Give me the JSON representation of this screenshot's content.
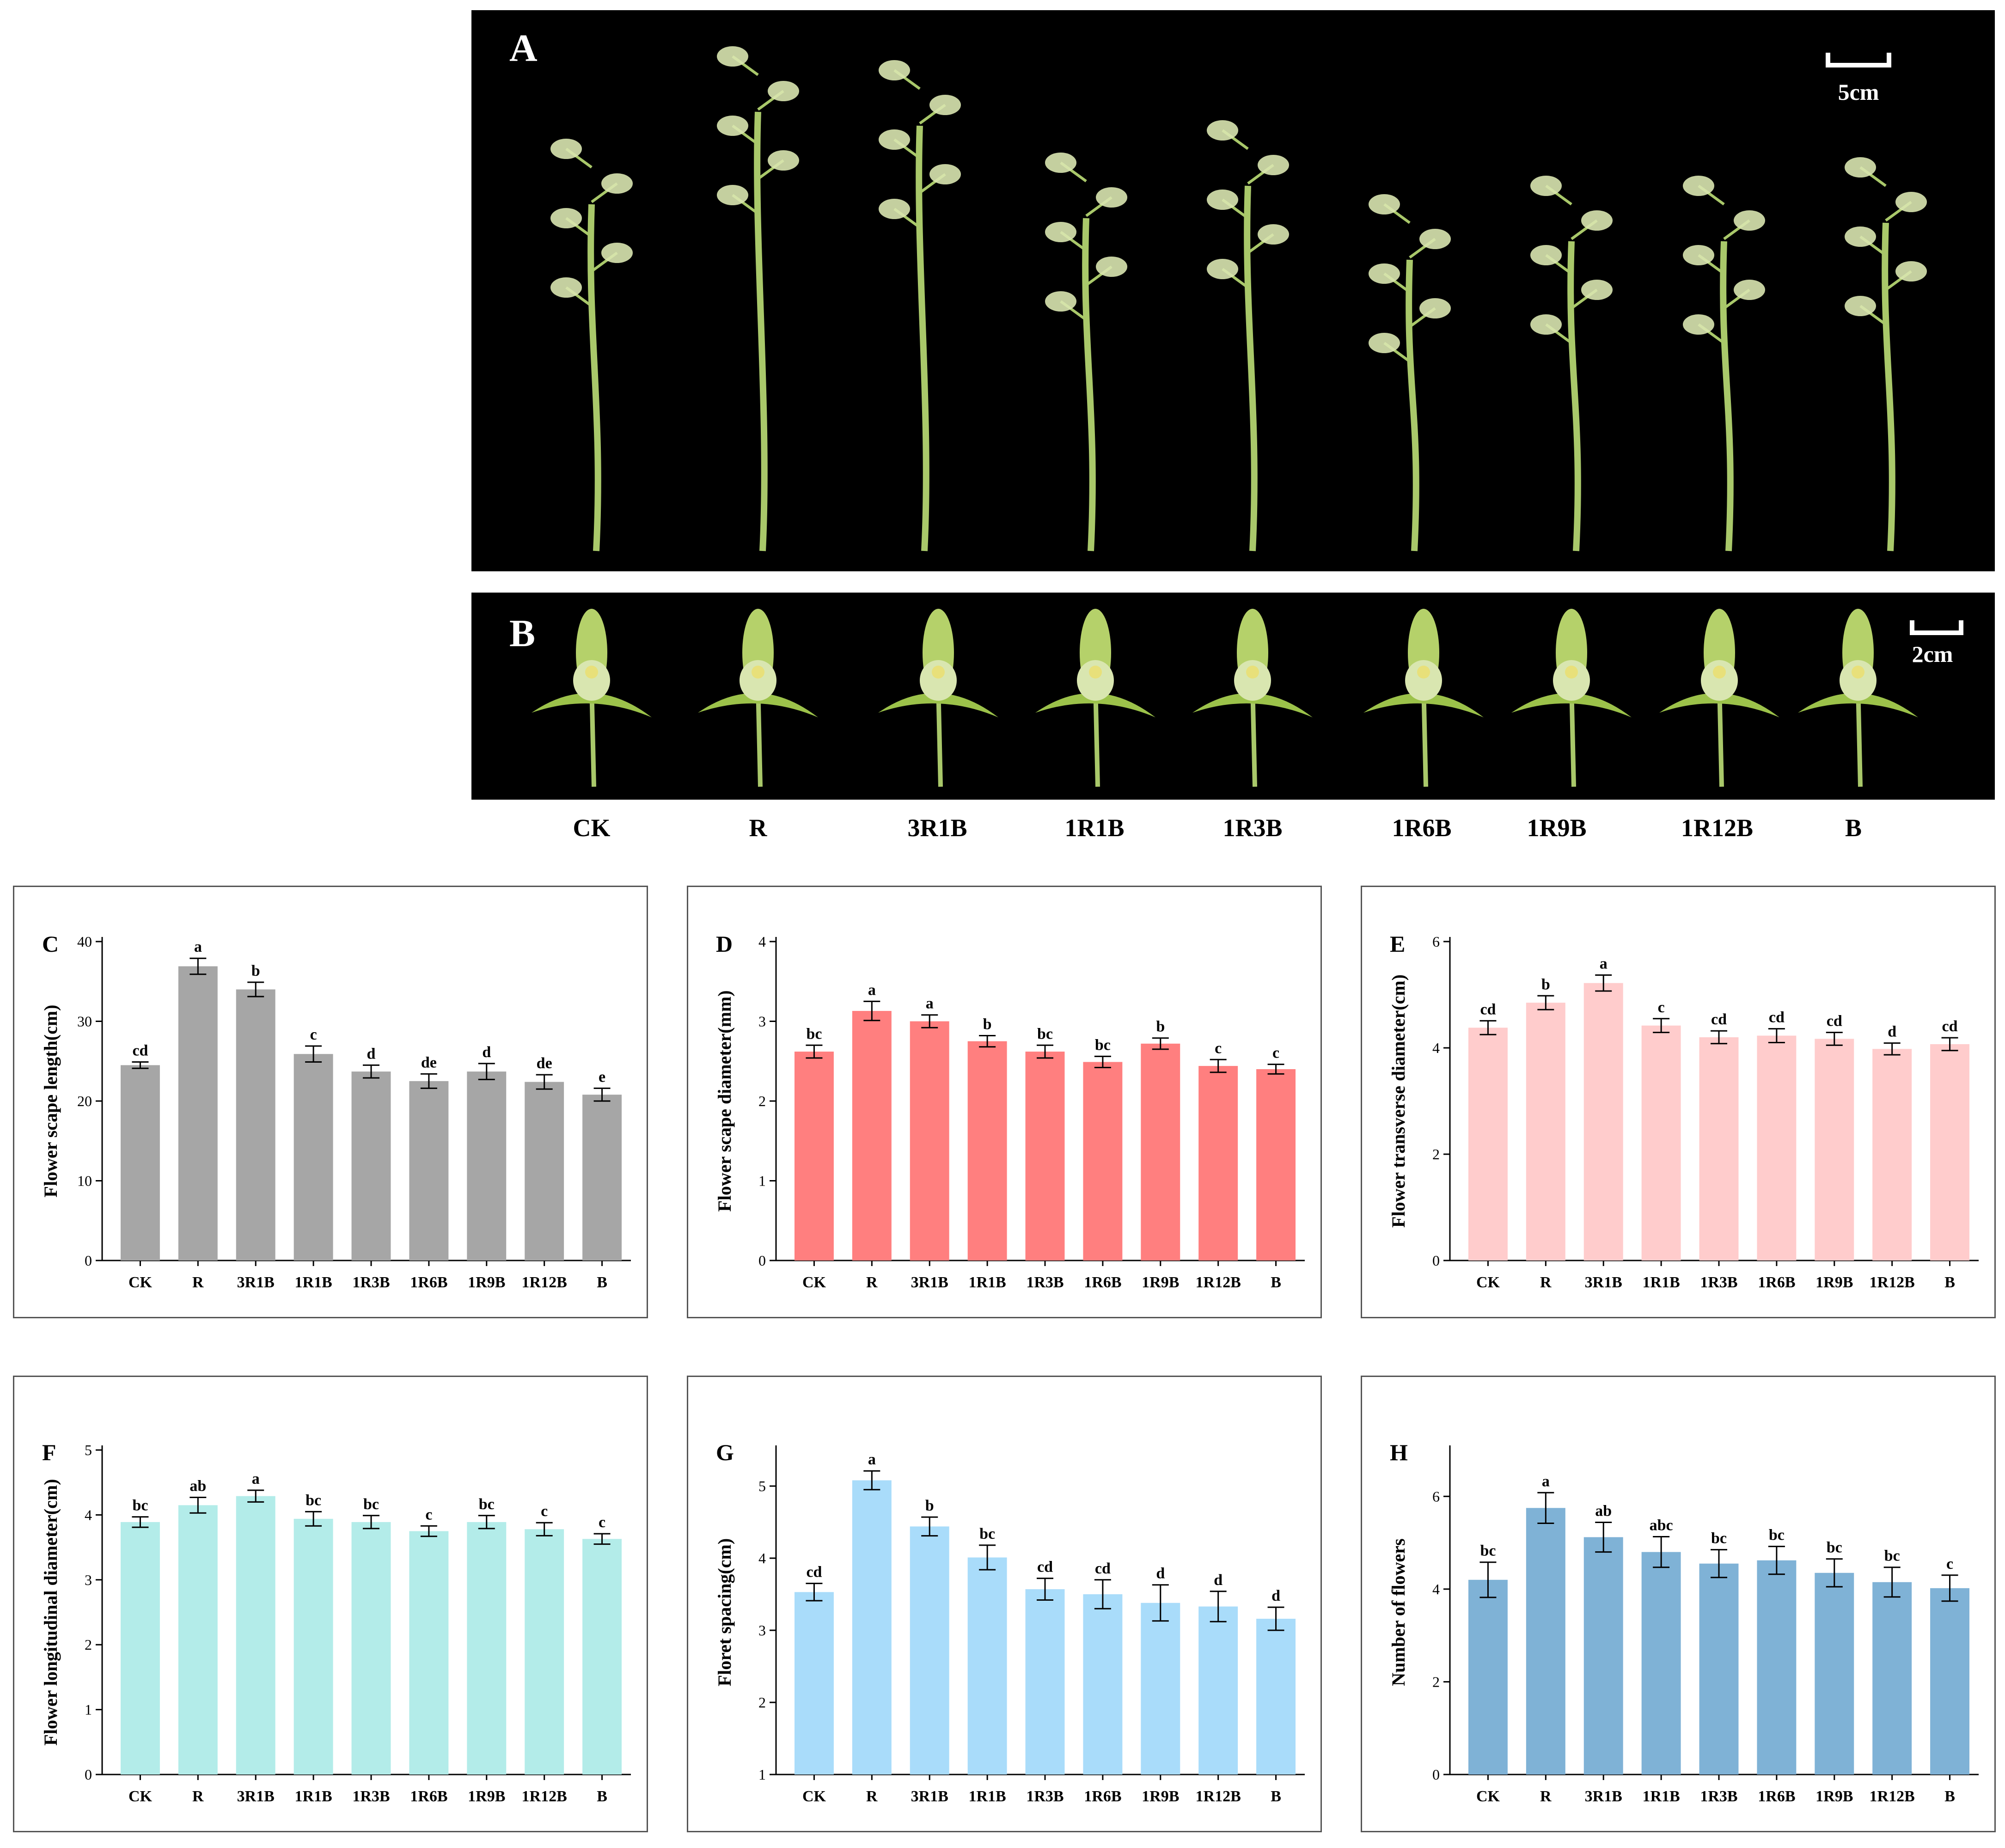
{
  "panels": {
    "A": {
      "letter": "A",
      "scale_label": "5cm"
    },
    "B": {
      "letter": "B",
      "scale_label": "2cm"
    }
  },
  "treatments": [
    "CK",
    "R",
    "3R1B",
    "1R1B",
    "1R3B",
    "1R6B",
    "1R9B",
    "1R12B",
    "B"
  ],
  "colors": {
    "C": "#a6a6a6",
    "D": "#ff7f7f",
    "E": "#ffcccc",
    "F": "#b3ece9",
    "G": "#a9dcfa",
    "H": "#7fb2d6",
    "plant_stem": "#a9c86a",
    "flower": "#d9e6b0"
  },
  "chart_data": [
    {
      "id": "C",
      "type": "bar",
      "letter": "C",
      "ylabel": "Flower scape length(cm)",
      "ylim": [
        0,
        40
      ],
      "yticks": [
        "0",
        "10",
        "20",
        "30",
        "40"
      ],
      "categories": [
        "CK",
        "R",
        "3R1B",
        "1R1B",
        "1R3B",
        "1R6B",
        "1R9B",
        "1R12B",
        "B"
      ],
      "values": [
        24.5,
        36.9,
        34.0,
        25.9,
        23.7,
        22.5,
        23.7,
        22.4,
        20.8
      ],
      "errors": [
        0.4,
        1.0,
        0.9,
        1.0,
        0.8,
        0.9,
        1.0,
        0.9,
        0.8
      ],
      "letters": [
        "cd",
        "a",
        "b",
        "c",
        "d",
        "de",
        "d",
        "de",
        "e"
      ]
    },
    {
      "id": "D",
      "type": "bar",
      "letter": "D",
      "ylabel": "Flower scape diameter(mm)",
      "ylim": [
        0,
        4
      ],
      "yticks": [
        "0",
        "1",
        "2",
        "3",
        "4"
      ],
      "categories": [
        "CK",
        "R",
        "3R1B",
        "1R1B",
        "1R3B",
        "1R6B",
        "1R9B",
        "1R12B",
        "B"
      ],
      "values": [
        2.62,
        3.13,
        3.0,
        2.75,
        2.62,
        2.49,
        2.72,
        2.44,
        2.4
      ],
      "errors": [
        0.08,
        0.12,
        0.08,
        0.07,
        0.08,
        0.07,
        0.07,
        0.08,
        0.06
      ],
      "letters": [
        "bc",
        "a",
        "a",
        "b",
        "bc",
        "bc",
        "b",
        "c",
        "c"
      ]
    },
    {
      "id": "E",
      "type": "bar",
      "letter": "E",
      "ylabel": "Flower transverse diameter(cm)",
      "ylim": [
        0,
        6
      ],
      "yticks": [
        "0",
        "2",
        "4",
        "6"
      ],
      "categories": [
        "CK",
        "R",
        "3R1B",
        "1R1B",
        "1R3B",
        "1R6B",
        "1R9B",
        "1R12B",
        "B"
      ],
      "values": [
        4.38,
        4.85,
        5.22,
        4.42,
        4.2,
        4.23,
        4.17,
        3.98,
        4.07
      ],
      "errors": [
        0.13,
        0.13,
        0.15,
        0.13,
        0.12,
        0.13,
        0.12,
        0.11,
        0.12
      ],
      "letters": [
        "cd",
        "b",
        "a",
        "c",
        "cd",
        "cd",
        "cd",
        "d",
        "cd"
      ]
    },
    {
      "id": "F",
      "type": "bar",
      "letter": "F",
      "ylabel": "Flower longitudinal diameter(cm)",
      "ylim": [
        0,
        5
      ],
      "yticks": [
        "0",
        "1",
        "2",
        "3",
        "4",
        "5"
      ],
      "categories": [
        "CK",
        "R",
        "3R1B",
        "1R1B",
        "1R3B",
        "1R6B",
        "1R9B",
        "1R12B",
        "B"
      ],
      "values": [
        3.89,
        4.15,
        4.29,
        3.94,
        3.89,
        3.75,
        3.89,
        3.78,
        3.63
      ],
      "errors": [
        0.08,
        0.12,
        0.09,
        0.11,
        0.1,
        0.08,
        0.1,
        0.1,
        0.08
      ],
      "letters": [
        "bc",
        "ab",
        "a",
        "bc",
        "bc",
        "c",
        "bc",
        "c",
        "c"
      ]
    },
    {
      "id": "G",
      "type": "bar",
      "letter": "G",
      "ylabel": "Floret spacing(cm)",
      "ylim": [
        1,
        5.5
      ],
      "yticks": [
        "1",
        "2",
        "3",
        "4",
        "5"
      ],
      "ytick_values": [
        1,
        2,
        3,
        4,
        5
      ],
      "categories": [
        "CK",
        "R",
        "3R1B",
        "1R1B",
        "1R3B",
        "1R6B",
        "1R9B",
        "1R12B",
        "B"
      ],
      "values": [
        3.53,
        5.08,
        4.44,
        4.01,
        3.57,
        3.5,
        3.38,
        3.33,
        3.16
      ],
      "errors": [
        0.12,
        0.13,
        0.13,
        0.17,
        0.15,
        0.2,
        0.25,
        0.21,
        0.16
      ],
      "letters": [
        "cd",
        "a",
        "b",
        "bc",
        "cd",
        "cd",
        "d",
        "d",
        "d"
      ]
    },
    {
      "id": "H",
      "type": "bar",
      "letter": "H",
      "ylabel": "Number of flowers",
      "ylim": [
        0,
        7
      ],
      "yticks": [
        "0",
        "2",
        "4",
        "6"
      ],
      "ytick_values": [
        0,
        2,
        4,
        6
      ],
      "categories": [
        "CK",
        "R",
        "3R1B",
        "1R1B",
        "1R3B",
        "1R6B",
        "1R9B",
        "1R12B",
        "B"
      ],
      "values": [
        4.2,
        5.75,
        5.12,
        4.8,
        4.55,
        4.62,
        4.35,
        4.15,
        4.02
      ],
      "errors": [
        0.38,
        0.33,
        0.32,
        0.33,
        0.3,
        0.3,
        0.3,
        0.32,
        0.28
      ],
      "letters": [
        "bc",
        "a",
        "ab",
        "abc",
        "bc",
        "bc",
        "bc",
        "bc",
        "c"
      ]
    }
  ]
}
